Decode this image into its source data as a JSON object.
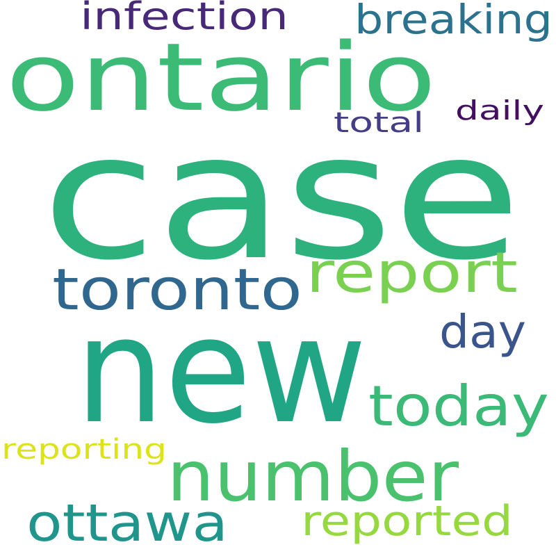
{
  "words": [
    {
      "id": "case",
      "text": "case",
      "color": "#2db27d"
    },
    {
      "id": "new",
      "text": "new",
      "color": "#21a685"
    },
    {
      "id": "ontario",
      "text": "ontario",
      "color": "#3bbb75"
    },
    {
      "id": "number",
      "text": "number",
      "color": "#4ac16d"
    },
    {
      "id": "toronto",
      "text": "toronto",
      "color": "#30678e"
    },
    {
      "id": "report",
      "text": "report",
      "color": "#7ad151"
    },
    {
      "id": "today",
      "text": "today",
      "color": "#3aba76"
    },
    {
      "id": "ottawa",
      "text": "ottawa",
      "color": "#1f958b"
    },
    {
      "id": "reported",
      "text": "reported",
      "color": "#95d840"
    },
    {
      "id": "day",
      "text": "day",
      "color": "#3a548c"
    },
    {
      "id": "breaking",
      "text": "breaking",
      "color": "#2c718e"
    },
    {
      "id": "infection",
      "text": "infection",
      "color": "#482878"
    },
    {
      "id": "reporting",
      "text": "reporting",
      "color": "#dce319"
    },
    {
      "id": "daily",
      "text": "daily",
      "color": "#440f5e"
    },
    {
      "id": "total",
      "text": "total",
      "color": "#433e85"
    }
  ]
}
